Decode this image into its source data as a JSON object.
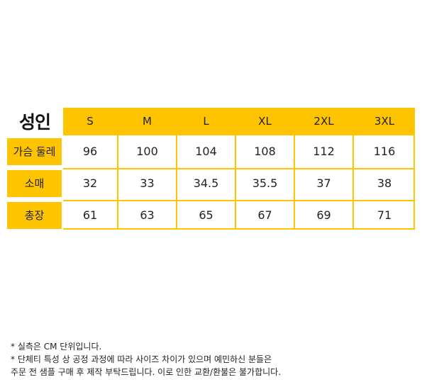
{
  "title": "성인",
  "colors": {
    "accent": "#ffc400",
    "text": "#222222"
  },
  "table": {
    "sizes": [
      "S",
      "M",
      "L",
      "XL",
      "2XL",
      "3XL"
    ],
    "rows": [
      {
        "label": "가슴 둘레",
        "values": [
          "96",
          "100",
          "104",
          "108",
          "112",
          "116"
        ]
      },
      {
        "label": "소매",
        "values": [
          "32",
          "33",
          "34.5",
          "35.5",
          "37",
          "38"
        ]
      },
      {
        "label": "총장",
        "values": [
          "61",
          "63",
          "65",
          "67",
          "69",
          "71"
        ]
      }
    ]
  },
  "notes": [
    "* 실측은 CM 단위입니다.",
    "* 단체티 특성 상 공정 과정에 따라 사이즈 차이가 있으며 예민하신 분들은",
    "주문 전 샘플 구매 후 제작 부탁드립니다. 이로 인한 교환/환불은 불가합니다."
  ]
}
